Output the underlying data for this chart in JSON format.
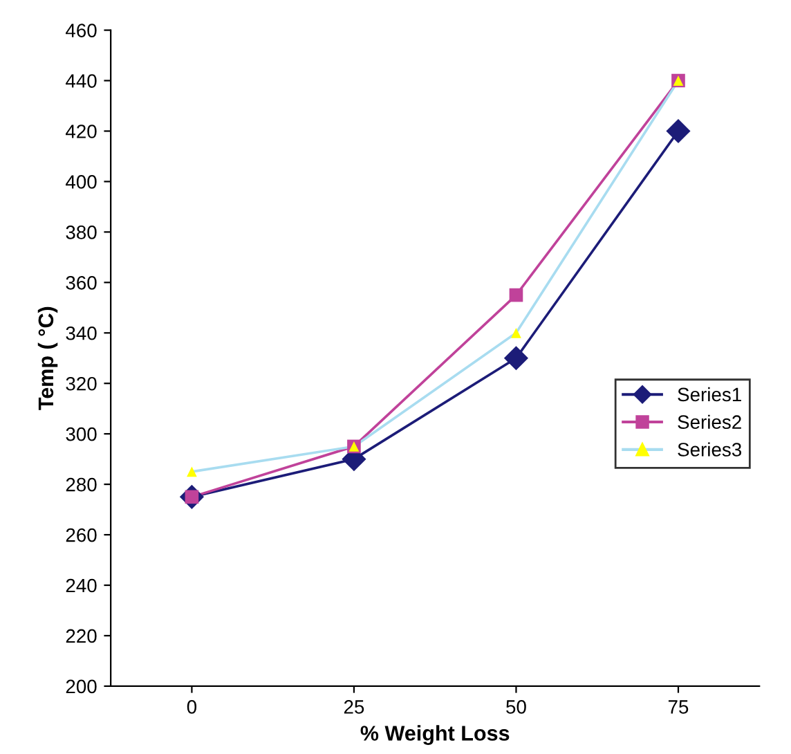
{
  "chart_data": {
    "type": "line",
    "xlabel": "% Weight Loss",
    "ylabel": "Temp ( °C)",
    "categories": [
      "0",
      "25",
      "50",
      "75"
    ],
    "series": [
      {
        "name": "Series1",
        "color": "#1c1c78",
        "marker": "diamond",
        "values": [
          275,
          290,
          330,
          420
        ]
      },
      {
        "name": "Series2",
        "color": "#c0429a",
        "marker": "square",
        "values": [
          275,
          295,
          355,
          440
        ]
      },
      {
        "name": "Series3",
        "color": "#a8dcf0",
        "colors": [
          "#ffff00",
          "#ffff00",
          "#ffff00",
          "#ffff00"
        ],
        "marker": "triangle",
        "values": [
          285,
          295,
          340,
          440
        ]
      }
    ],
    "ylim": [
      200,
      460
    ],
    "yticks": [
      200,
      220,
      240,
      260,
      280,
      300,
      320,
      340,
      360,
      380,
      400,
      420,
      440,
      460
    ],
    "grid": false,
    "legend": "right",
    "line_style": "solid"
  }
}
